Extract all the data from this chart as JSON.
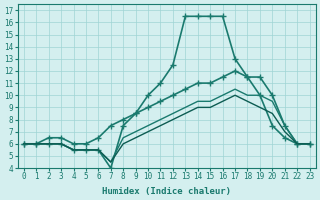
{
  "xlabel": "Humidex (Indice chaleur)",
  "ylabel": "",
  "xlim": [
    -0.5,
    23.5
  ],
  "ylim": [
    4,
    17.5
  ],
  "xticks": [
    0,
    1,
    2,
    3,
    4,
    5,
    6,
    7,
    8,
    9,
    10,
    11,
    12,
    13,
    14,
    15,
    16,
    17,
    18,
    19,
    20,
    21,
    22,
    23
  ],
  "yticks": [
    4,
    5,
    6,
    7,
    8,
    9,
    10,
    11,
    12,
    13,
    14,
    15,
    16,
    17
  ],
  "bg_color": "#d4efef",
  "line_color": "#1a7a6e",
  "line_color2": "#0d5c52",
  "series": [
    {
      "x": [
        0,
        1,
        2,
        3,
        4,
        5,
        6,
        7,
        8,
        9,
        10,
        11,
        12,
        13,
        14,
        15,
        16,
        17,
        18,
        19,
        20,
        21,
        22,
        23
      ],
      "y": [
        6,
        6,
        6,
        6,
        5.5,
        5.5,
        5.5,
        4,
        7.5,
        8.5,
        10,
        11,
        12.5,
        16.5,
        16.5,
        16.5,
        16.5,
        13,
        11.5,
        10,
        7.5,
        6.5,
        6,
        6
      ],
      "color": "#1a7a6e",
      "marker": "+",
      "lw": 1.2,
      "ms": 5
    },
    {
      "x": [
        0,
        1,
        2,
        3,
        4,
        5,
        6,
        7,
        8,
        9,
        10,
        11,
        12,
        13,
        14,
        15,
        16,
        17,
        18,
        19,
        20,
        21,
        22,
        23
      ],
      "y": [
        6,
        6,
        6.5,
        6.5,
        6,
        6,
        6.5,
        7.5,
        8,
        8.5,
        9,
        9.5,
        10,
        10.5,
        11,
        11,
        11.5,
        12,
        11.5,
        11.5,
        10,
        7.5,
        6,
        6
      ],
      "color": "#1a7a6e",
      "marker": "+",
      "lw": 1.2,
      "ms": 5
    },
    {
      "x": [
        0,
        1,
        2,
        3,
        4,
        5,
        6,
        7,
        8,
        9,
        10,
        11,
        12,
        13,
        14,
        15,
        16,
        17,
        18,
        19,
        20,
        21,
        22,
        23
      ],
      "y": [
        6,
        6,
        6,
        6,
        5.5,
        5.5,
        5.5,
        4.5,
        6.5,
        7,
        7.5,
        8,
        8.5,
        9,
        9.5,
        9.5,
        10,
        10.5,
        10,
        10,
        9.5,
        7.5,
        6,
        6
      ],
      "color": "#1a7a6e",
      "marker": null,
      "lw": 1.0,
      "ms": 0
    },
    {
      "x": [
        0,
        1,
        2,
        3,
        4,
        5,
        6,
        7,
        8,
        9,
        10,
        11,
        12,
        13,
        14,
        15,
        16,
        17,
        18,
        19,
        20,
        21,
        22,
        23
      ],
      "y": [
        6,
        6,
        6,
        6,
        5.5,
        5.5,
        5.5,
        4.5,
        6,
        6.5,
        7,
        7.5,
        8,
        8.5,
        9,
        9,
        9.5,
        10,
        9.5,
        9,
        8.5,
        7,
        6,
        6
      ],
      "color": "#0d5c52",
      "marker": null,
      "lw": 1.0,
      "ms": 0
    }
  ]
}
